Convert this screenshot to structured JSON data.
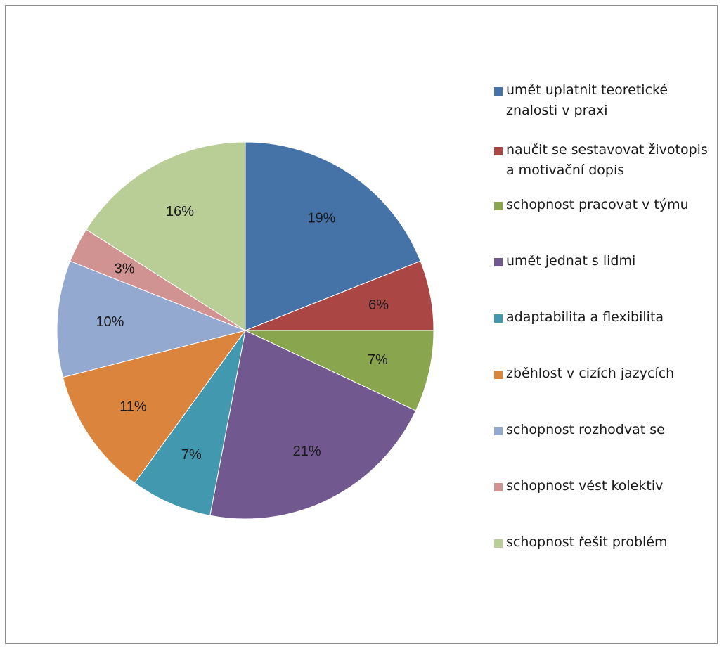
{
  "chart_data": {
    "type": "pie",
    "legend_position": "right",
    "slices": [
      {
        "label": "umět uplatnit teoretické znalosti v praxi",
        "value": 19,
        "display": "19%",
        "color": "#4572a7"
      },
      {
        "label": "naučit se sestavovat životopis a motivační dopis",
        "value": 6,
        "display": "6%",
        "color": "#aa4643"
      },
      {
        "label": "schopnost pracovat v týmu",
        "value": 7,
        "display": "7%",
        "color": "#89a54e"
      },
      {
        "label": "umět jednat s lidmi",
        "value": 21,
        "display": "21%",
        "color": "#71588f"
      },
      {
        "label": "adaptabilita a flexibilita",
        "value": 7,
        "display": "7%",
        "color": "#4198af"
      },
      {
        "label": "zběhlost v cizích jazycích",
        "value": 11,
        "display": "11%",
        "color": "#db843d"
      },
      {
        "label": "schopnost rozhodvat se",
        "value": 10,
        "display": "10%",
        "color": "#93a9cf"
      },
      {
        "label": "schopnost vést kolektiv",
        "value": 3,
        "display": "3%",
        "color": "#d19392"
      },
      {
        "label": "schopnost řešit problém",
        "value": 16,
        "display": "16%",
        "color": "#b9cd96"
      }
    ]
  }
}
